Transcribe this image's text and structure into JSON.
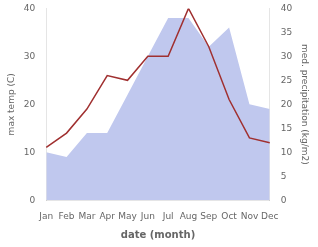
{
  "chart_data": {
    "type": "line",
    "categories": [
      "Jan",
      "Feb",
      "Mar",
      "Apr",
      "May",
      "Jun",
      "Jul",
      "Aug",
      "Sep",
      "Oct",
      "Nov",
      "Dec"
    ],
    "series": [
      {
        "type": "area",
        "color": "#c0c8ee",
        "axis": "y2",
        "values": [
          10,
          9,
          14,
          14,
          22,
          30,
          38,
          38,
          32,
          36,
          20,
          19
        ]
      },
      {
        "type": "line",
        "color": "#a03030",
        "axis": "y",
        "values": [
          11,
          14,
          19,
          26,
          25,
          30,
          30,
          40,
          32,
          21,
          13,
          12
        ]
      }
    ],
    "xlabel": "date (month)",
    "ylabel": "max temp (C)",
    "y2label": "med. precipitation (kg/m2)",
    "ylim": [
      0,
      40
    ],
    "yticks": [
      0,
      10,
      20,
      30,
      40
    ],
    "y2lim": [
      0,
      40
    ],
    "y2ticks": [
      0,
      5,
      10,
      15,
      20,
      25,
      30,
      35,
      40
    ],
    "grid": false
  }
}
